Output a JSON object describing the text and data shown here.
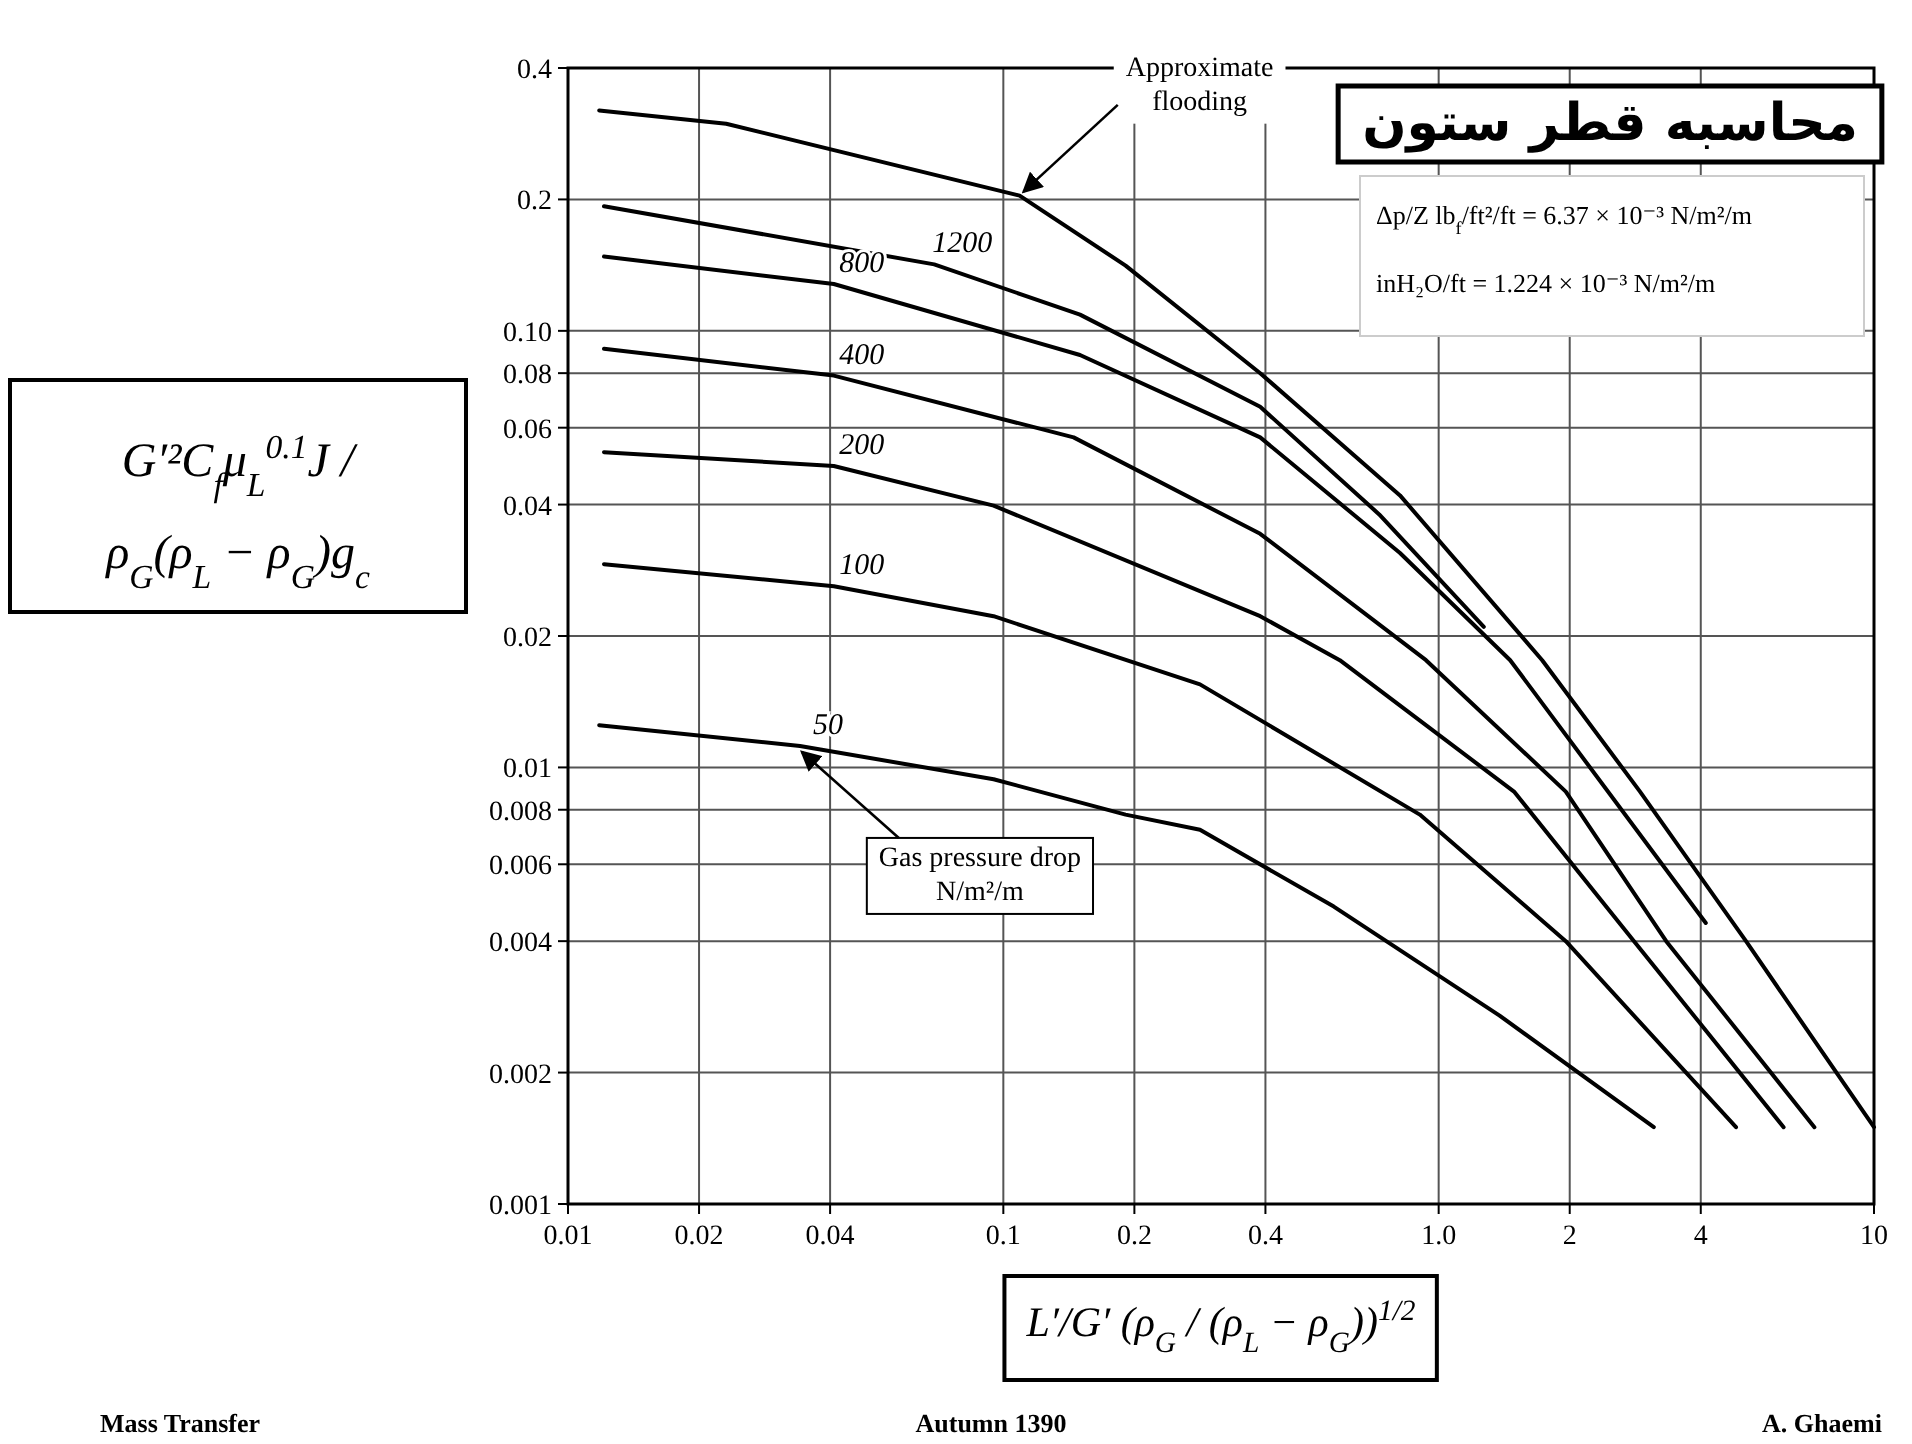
{
  "chart_data": {
    "type": "line",
    "title": "محاسبه قطر ستون",
    "xlabel": "L′/G′ (ρ$_{G}$ / (ρ$_{L}$ − ρ$_{G}$))$^{1/2}$",
    "ylabel": "G′²C$_{f}$μ$_{L}$$^{0.1}$J / ρ$_{G}$(ρ$_{L}$ − ρ$_{G}$)g$_{c}$",
    "log": "xy",
    "grid": true,
    "xlim": [
      0.01,
      10
    ],
    "ylim": [
      0.001,
      0.4
    ],
    "xticks": [
      0.01,
      0.02,
      0.04,
      0.1,
      0.2,
      0.4,
      {
        "value": 1,
        "label": "1.0"
      },
      2,
      4,
      10
    ],
    "yticks": [
      0.001,
      0.002,
      0.004,
      0.006,
      0.008,
      0.01,
      0.02,
      0.04,
      0.06,
      0.08,
      {
        "value": 0.1,
        "label": "0.10"
      },
      0.2,
      0.4
    ],
    "series": [
      {
        "color": "#000000",
        "x": [
          0.0118,
          0.0231,
          0.109,
          0.191,
          0.389,
          0.815,
          1.73,
          2.9,
          5.08,
          10
        ],
        "values": [
          0.32,
          0.298,
          0.204,
          0.141,
          0.08,
          0.042,
          0.0176,
          0.0088,
          0.004,
          0.0015
        ]
      },
      {
        "name": "1200",
        "color": "#000000",
        "x": [
          0.0121,
          0.0694,
          0.15,
          0.389,
          0.73,
          1.27
        ],
        "values": [
          0.193,
          0.142,
          0.109,
          0.067,
          0.038,
          0.021
        ]
      },
      {
        "name": "800",
        "color": "#000000",
        "x": [
          0.0121,
          0.0408,
          0.15,
          0.389,
          0.815,
          1.46,
          4.11
        ],
        "values": [
          0.148,
          0.128,
          0.088,
          0.057,
          0.031,
          0.0176,
          0.0044
        ]
      },
      {
        "name": "400",
        "color": "#000000",
        "x": [
          0.0121,
          0.0408,
          0.145,
          0.389,
          0.935,
          1.96,
          3.33,
          7.3
        ],
        "values": [
          0.091,
          0.079,
          0.057,
          0.0343,
          0.0176,
          0.0088,
          0.004,
          0.0015
        ]
      },
      {
        "name": "200",
        "color": "#000000",
        "x": [
          0.0121,
          0.0408,
          0.095,
          0.389,
          0.593,
          1.49,
          2.81,
          6.2
        ],
        "values": [
          0.0527,
          0.049,
          0.0398,
          0.0222,
          0.0176,
          0.0088,
          0.004,
          0.0015
        ]
      },
      {
        "name": "100",
        "color": "#000000",
        "x": [
          0.0121,
          0.0408,
          0.095,
          0.283,
          0.905,
          1.96,
          4.82
        ],
        "values": [
          0.0292,
          0.026,
          0.0222,
          0.0155,
          0.0078,
          0.004,
          0.0015
        ]
      },
      {
        "name": "50",
        "color": "#000000",
        "x": [
          0.0118,
          0.0341,
          0.095,
          0.191,
          0.283,
          0.574,
          1.38,
          3.12
        ],
        "values": [
          0.0125,
          0.0112,
          0.0094,
          0.0078,
          0.0072,
          0.0048,
          0.0027,
          0.0015
        ]
      }
    ],
    "annotations": [
      "Δp/Z  lb$_{f}$/ft²/ft = 6.37 × 10⁻³ N/m²/m",
      "inH₂O/ft = 1.224 × 10⁻³ N/m²/m",
      "Mass Transfer",
      "Autumn 1390",
      "A. Ghaemi",
      {
        "text": "Approximate\nflooding",
        "x": 0.109,
        "y": 0.204
      },
      {
        "text": "Gas pressure drop\nN/m²/m",
        "x": 0.0341,
        "y": 0.0112
      }
    ]
  }
}
